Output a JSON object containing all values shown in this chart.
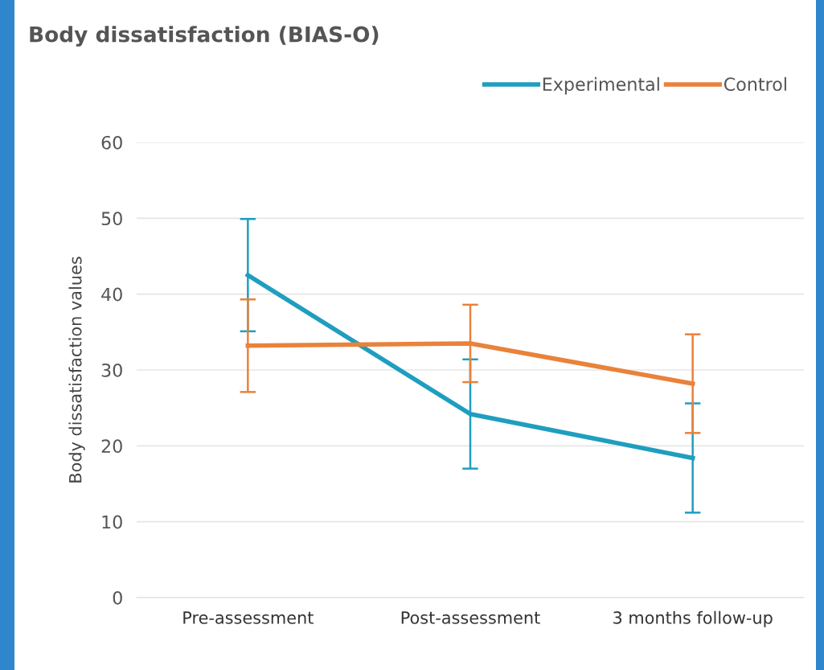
{
  "chart_data": {
    "type": "line",
    "title": "Body dissatisfaction (BIAS-O)",
    "ylabel": "Body dissatisfaction values",
    "categories": [
      "Pre-assessment",
      "Post-assessment",
      "3 months follow-up"
    ],
    "series": [
      {
        "name": "Experimental",
        "color": "#1f9ebf",
        "values": [
          42.5,
          24.2,
          18.4
        ],
        "errors": [
          7.4,
          7.2,
          7.2
        ]
      },
      {
        "name": "Control",
        "color": "#e9823a",
        "values": [
          33.2,
          33.5,
          28.2
        ],
        "errors": [
          6.1,
          5.1,
          6.5
        ]
      }
    ],
    "ylim": [
      0,
      60
    ],
    "yticks": [
      0,
      10,
      20,
      30,
      40,
      50,
      60
    ],
    "grid": "y",
    "legend": "top right",
    "marker": "none",
    "line_style": "solid"
  }
}
